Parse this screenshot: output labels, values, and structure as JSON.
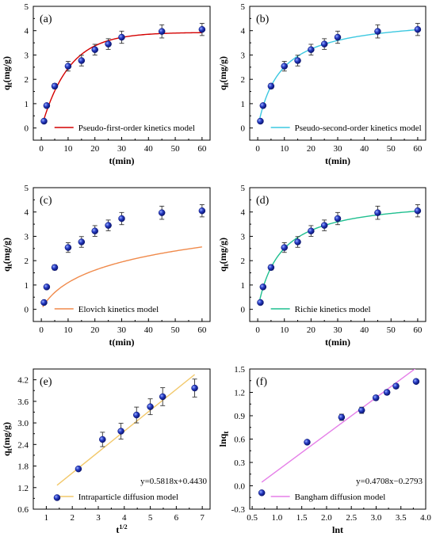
{
  "chart_data": [
    {
      "type": "scatter",
      "panel_label": "(a)",
      "xlabel": "t(min)",
      "ylabel": "q_t(mg/g)",
      "xlim": [
        -3,
        63
      ],
      "ylim": [
        -0.5,
        5
      ],
      "xticks": [
        0,
        10,
        20,
        30,
        40,
        50,
        60
      ],
      "yticks": [
        0,
        1,
        2,
        3,
        4,
        5
      ],
      "points": {
        "x": [
          1,
          2,
          5,
          10,
          15,
          20,
          25,
          30,
          45,
          60
        ],
        "y": [
          0.28,
          0.92,
          1.72,
          2.54,
          2.77,
          3.22,
          3.45,
          3.73,
          3.97,
          4.05
        ],
        "err": [
          0.05,
          0.08,
          0.1,
          0.2,
          0.22,
          0.22,
          0.22,
          0.25,
          0.27,
          0.25
        ]
      },
      "series": [
        {
          "name": "Pseudo-first-order kinetics model",
          "model": "pfo",
          "qe": 3.93,
          "k": 0.098,
          "color": "#d40000"
        }
      ],
      "legend": "bottom-right",
      "equation": ""
    },
    {
      "type": "scatter",
      "panel_label": "(b)",
      "xlabel": "t(min)",
      "ylabel": "q_t(mg/g)",
      "xlim": [
        -3,
        63
      ],
      "ylim": [
        -0.5,
        5
      ],
      "xticks": [
        0,
        10,
        20,
        30,
        40,
        50,
        60
      ],
      "yticks": [
        0,
        1,
        2,
        3,
        4,
        5
      ],
      "points": {
        "x": [
          1,
          2,
          5,
          10,
          15,
          20,
          25,
          30,
          45,
          60
        ],
        "y": [
          0.28,
          0.92,
          1.72,
          2.54,
          2.77,
          3.22,
          3.45,
          3.73,
          3.97,
          4.05
        ],
        "err": [
          0.05,
          0.08,
          0.1,
          0.2,
          0.22,
          0.22,
          0.22,
          0.25,
          0.27,
          0.25
        ]
      },
      "series": [
        {
          "name": "Pseudo-second-order kinetics model",
          "model": "pso",
          "qe": 4.6,
          "k": 0.026,
          "color": "#3cc8e0"
        }
      ],
      "legend": "bottom-right",
      "equation": ""
    },
    {
      "type": "scatter",
      "panel_label": "(c)",
      "xlabel": "t(min)",
      "ylabel": "q_t(mg/g)",
      "xlim": [
        -3,
        63
      ],
      "ylim": [
        -0.5,
        5
      ],
      "xticks": [
        0,
        10,
        20,
        30,
        40,
        50,
        60
      ],
      "yticks": [
        0,
        1,
        2,
        3,
        4,
        5
      ],
      "points": {
        "x": [
          1,
          2,
          5,
          10,
          15,
          20,
          25,
          30,
          45,
          60
        ],
        "y": [
          0.28,
          0.92,
          1.72,
          2.54,
          2.77,
          3.22,
          3.45,
          3.73,
          3.97,
          4.05
        ],
        "err": [
          0.05,
          0.08,
          0.1,
          0.2,
          0.22,
          0.22,
          0.22,
          0.25,
          0.27,
          0.25
        ]
      },
      "series": [
        {
          "name": "Elovich kinetics model",
          "model": "elovich",
          "a": 0.2,
          "b": 1.0,
          "color": "#f08a4b"
        }
      ],
      "legend": "bottom-right",
      "equation": ""
    },
    {
      "type": "scatter",
      "panel_label": "(d)",
      "xlabel": "t(min)",
      "ylabel": "q_t(mg/g)",
      "xlim": [
        -3,
        63
      ],
      "ylim": [
        -0.5,
        5
      ],
      "xticks": [
        0,
        10,
        20,
        30,
        40,
        50,
        60
      ],
      "yticks": [
        0,
        1,
        2,
        3,
        4,
        5
      ],
      "points": {
        "x": [
          1,
          2,
          5,
          10,
          15,
          20,
          25,
          30,
          45,
          60
        ],
        "y": [
          0.28,
          0.92,
          1.72,
          2.54,
          2.77,
          3.22,
          3.45,
          3.73,
          3.97,
          4.05
        ],
        "err": [
          0.05,
          0.08,
          0.1,
          0.2,
          0.22,
          0.22,
          0.22,
          0.25,
          0.27,
          0.25
        ]
      },
      "series": [
        {
          "name": "Richie kinetics model",
          "model": "pso",
          "qe": 4.6,
          "k": 0.026,
          "color": "#1fbf8f"
        }
      ],
      "legend": "bottom-right",
      "equation": ""
    },
    {
      "type": "scatter",
      "panel_label": "(e)",
      "xlabel": "t^1/2",
      "ylabel": "q_t(mg/g)",
      "xlim": [
        0.5,
        7.3
      ],
      "ylim": [
        0.6,
        4.5
      ],
      "xticks": [
        1,
        2,
        3,
        4,
        5,
        6,
        7
      ],
      "yticks": [
        0.6,
        1.2,
        1.8,
        2.4,
        3.0,
        3.6,
        4.2
      ],
      "ytick_labels": [
        "0.6",
        "1.2",
        "1.8",
        "2.4",
        "3.0",
        "3.6",
        "4.2"
      ],
      "points": {
        "x": [
          1.414,
          2.236,
          3.162,
          3.873,
          4.472,
          5.0,
          5.477,
          6.708
        ],
        "y": [
          0.92,
          1.72,
          2.54,
          2.77,
          3.22,
          3.45,
          3.73,
          3.97
        ],
        "err": [
          0.03,
          0.04,
          0.2,
          0.22,
          0.22,
          0.22,
          0.25,
          0.25
        ]
      },
      "series": [
        {
          "name": "Intraparticle diffusion model",
          "model": "linear",
          "slope": 0.5818,
          "intercept": 0.443,
          "xrange": [
            1.414,
            6.708
          ],
          "color": "#f2c86a"
        }
      ],
      "legend": "bottom-right",
      "equation": "y=0.5818x+0.4430"
    },
    {
      "type": "scatter",
      "panel_label": "(f)",
      "xlabel": "lnt",
      "ylabel": "lnq_t",
      "xlim": [
        0.45,
        4.0
      ],
      "ylim": [
        -0.3,
        1.5
      ],
      "xticks": [
        0.5,
        1.0,
        1.5,
        2.0,
        2.5,
        3.0,
        3.5,
        4.0
      ],
      "yticks": [
        -0.3,
        0.0,
        0.3,
        0.6,
        0.9,
        1.2,
        1.5
      ],
      "xtick_labels": [
        "0.5",
        "1.0",
        "1.5",
        "2.0",
        "2.5",
        "3.0",
        "3.5",
        "4.0"
      ],
      "ytick_labels": [
        "-0.3",
        "0.0",
        "0.3",
        "0.6",
        "0.9",
        "1.2",
        "1.5"
      ],
      "points": {
        "x": [
          0.693,
          1.609,
          2.303,
          2.708,
          2.996,
          3.219,
          3.401,
          3.807
        ],
        "y": [
          -0.09,
          0.56,
          0.88,
          0.97,
          1.13,
          1.2,
          1.28,
          1.34
        ],
        "err": [
          0.015,
          0.02,
          0.04,
          0.04,
          0.03,
          0.03,
          0.03,
          0.02
        ]
      },
      "series": [
        {
          "name": "Bangham diffusion model",
          "model": "linear",
          "slope": 0.4708,
          "intercept": -0.2793,
          "xrange": [
            0.693,
            3.807
          ],
          "color": "#e57fe8"
        }
      ],
      "legend": "bottom-right",
      "equation": "y=0.4708x−0.2793"
    }
  ]
}
